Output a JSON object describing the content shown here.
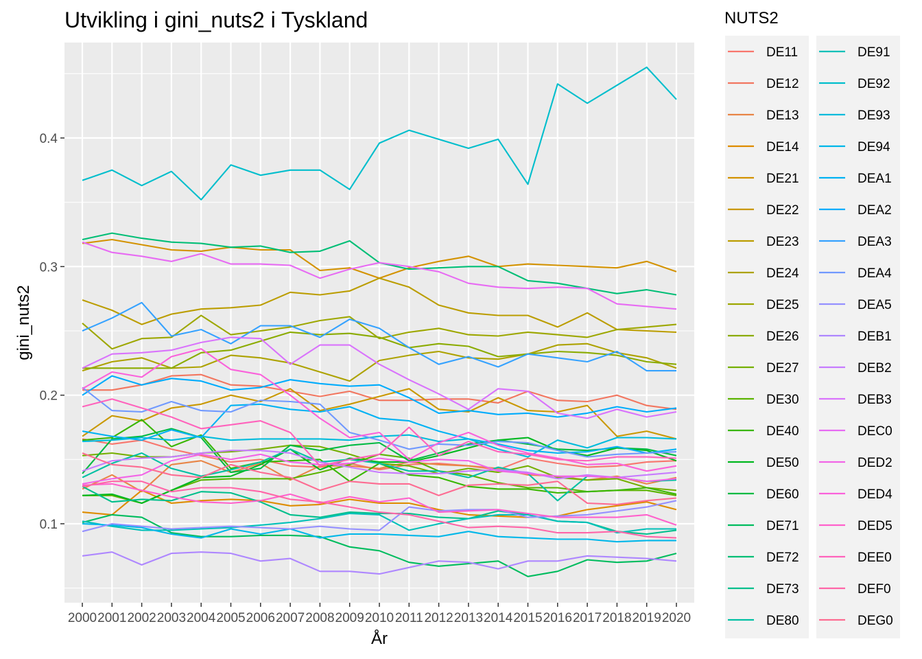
{
  "chart_data": {
    "type": "line",
    "title": "Utvikling i gini_nuts2 i Tyskland",
    "xlabel": "År",
    "ylabel": "gini_nuts2",
    "x": [
      2000,
      2001,
      2002,
      2003,
      2004,
      2005,
      2006,
      2007,
      2008,
      2009,
      2010,
      2011,
      2012,
      2013,
      2014,
      2015,
      2016,
      2017,
      2018,
      2019,
      2020
    ],
    "x_tick_labels": [
      "2000",
      "2001",
      "2002",
      "2003",
      "2004",
      "2005",
      "2006",
      "2007",
      "2008",
      "2009",
      "2010",
      "2011",
      "2012",
      "2013",
      "2014",
      "2015",
      "2016",
      "2017",
      "2018",
      "2019",
      "2020"
    ],
    "y_ticks": [
      0.1,
      0.2,
      0.3,
      0.4
    ],
    "y_tick_labels": [
      "0.1",
      "0.2",
      "0.3",
      "0.4"
    ],
    "ylim": [
      0.04,
      0.47
    ],
    "grid": true,
    "legend_title": "NUTS2",
    "legend_position": "right",
    "series": [
      {
        "name": "DE11",
        "color": "#F8766D",
        "values": [
          0.166,
          0.162,
          0.165,
          0.158,
          0.153,
          0.148,
          0.15,
          0.145,
          0.144,
          0.147,
          0.142,
          0.146,
          0.147,
          0.145,
          0.142,
          0.151,
          0.147,
          0.144,
          0.145,
          0.148,
          0.149
        ]
      },
      {
        "name": "DE12",
        "color": "#F2765F",
        "values": [
          0.204,
          0.204,
          0.208,
          0.215,
          0.216,
          0.208,
          0.207,
          0.203,
          0.199,
          0.203,
          0.196,
          0.196,
          0.197,
          0.197,
          0.194,
          0.203,
          0.196,
          0.195,
          0.2,
          0.192,
          0.189
        ]
      },
      {
        "name": "DE13",
        "color": "#E88546",
        "values": [
          0.127,
          0.138,
          0.125,
          0.146,
          0.149,
          0.14,
          0.147,
          0.134,
          0.145,
          0.145,
          0.143,
          0.148,
          0.146,
          0.145,
          0.143,
          0.138,
          0.137,
          0.134,
          0.137,
          0.131,
          0.136
        ]
      },
      {
        "name": "DE14",
        "color": "#DE8C00",
        "values": [
          0.109,
          0.107,
          0.126,
          0.116,
          0.118,
          0.119,
          0.118,
          0.114,
          0.115,
          0.119,
          0.116,
          0.116,
          0.111,
          0.107,
          0.106,
          0.105,
          0.106,
          0.111,
          0.114,
          0.117,
          0.111
        ]
      },
      {
        "name": "DE21",
        "color": "#D39200",
        "values": [
          0.318,
          0.321,
          0.317,
          0.313,
          0.312,
          0.315,
          0.313,
          0.313,
          0.297,
          0.299,
          0.291,
          0.299,
          0.304,
          0.308,
          0.3,
          0.302,
          0.301,
          0.3,
          0.299,
          0.304,
          0.296
        ]
      },
      {
        "name": "DE22",
        "color": "#C99800",
        "values": [
          0.168,
          0.184,
          0.18,
          0.19,
          0.193,
          0.2,
          0.195,
          0.205,
          0.188,
          0.193,
          0.199,
          0.205,
          0.189,
          0.187,
          0.198,
          0.188,
          0.187,
          0.192,
          0.168,
          0.172,
          0.166
        ]
      },
      {
        "name": "DE23",
        "color": "#BB9D00",
        "values": [
          0.274,
          0.266,
          0.255,
          0.263,
          0.267,
          0.268,
          0.27,
          0.28,
          0.278,
          0.281,
          0.291,
          0.284,
          0.27,
          0.264,
          0.262,
          0.262,
          0.253,
          0.264,
          0.251,
          0.25,
          0.249
        ]
      },
      {
        "name": "DE24",
        "color": "#ADA200",
        "values": [
          0.219,
          0.226,
          0.229,
          0.221,
          0.222,
          0.231,
          0.229,
          0.225,
          0.218,
          0.211,
          0.227,
          0.231,
          0.234,
          0.229,
          0.228,
          0.232,
          0.239,
          0.24,
          0.233,
          0.229,
          0.221
        ]
      },
      {
        "name": "DE25",
        "color": "#9DA700",
        "values": [
          0.256,
          0.236,
          0.244,
          0.245,
          0.262,
          0.247,
          0.25,
          0.253,
          0.258,
          0.261,
          0.244,
          0.249,
          0.252,
          0.247,
          0.246,
          0.249,
          0.247,
          0.245,
          0.251,
          0.253,
          0.255
        ]
      },
      {
        "name": "DE26",
        "color": "#8BAB00",
        "values": [
          0.221,
          0.221,
          0.221,
          0.221,
          0.233,
          0.235,
          0.242,
          0.249,
          0.247,
          0.248,
          0.245,
          0.237,
          0.24,
          0.238,
          0.23,
          0.232,
          0.234,
          0.233,
          0.231,
          0.226,
          0.224
        ]
      },
      {
        "name": "DE27",
        "color": "#75AF00",
        "values": [
          0.153,
          0.155,
          0.152,
          0.152,
          0.155,
          0.156,
          0.158,
          0.161,
          0.16,
          0.154,
          0.147,
          0.145,
          0.139,
          0.143,
          0.14,
          0.145,
          0.136,
          0.134,
          0.135,
          0.128,
          0.126
        ]
      },
      {
        "name": "DE30",
        "color": "#5BB300",
        "values": [
          0.122,
          0.122,
          0.116,
          0.126,
          0.134,
          0.135,
          0.135,
          0.135,
          0.14,
          0.146,
          0.154,
          0.151,
          0.141,
          0.138,
          0.132,
          0.128,
          0.128,
          0.125,
          0.126,
          0.126,
          0.122
        ]
      },
      {
        "name": "DE40",
        "color": "#39B600",
        "values": [
          0.165,
          0.167,
          0.181,
          0.16,
          0.169,
          0.143,
          0.148,
          0.149,
          0.15,
          0.133,
          0.147,
          0.138,
          0.136,
          0.129,
          0.127,
          0.127,
          0.124,
          0.125,
          0.126,
          0.128,
          0.123
        ]
      },
      {
        "name": "DE50",
        "color": "#00B81F",
        "values": [
          0.122,
          0.123,
          0.116,
          0.126,
          0.136,
          0.137,
          0.146,
          0.158,
          0.142,
          0.151,
          0.148,
          0.148,
          0.153,
          0.159,
          0.165,
          0.167,
          0.157,
          0.153,
          0.159,
          0.157,
          0.149
        ]
      },
      {
        "name": "DE60",
        "color": "#00BA42",
        "values": [
          0.139,
          0.166,
          0.168,
          0.174,
          0.167,
          0.14,
          0.143,
          0.161,
          0.157,
          0.161,
          0.163,
          0.149,
          0.155,
          0.162,
          0.165,
          0.162,
          0.158,
          0.157,
          0.159,
          0.158,
          0.153
        ]
      },
      {
        "name": "DE71",
        "color": "#00BC5E",
        "values": [
          0.101,
          0.107,
          0.105,
          0.093,
          0.09,
          0.09,
          0.091,
          0.091,
          0.09,
          0.082,
          0.079,
          0.07,
          0.067,
          0.069,
          0.071,
          0.059,
          0.063,
          0.072,
          0.07,
          0.071,
          0.077
        ]
      },
      {
        "name": "DE72",
        "color": "#00BE76",
        "values": [
          0.321,
          0.326,
          0.322,
          0.319,
          0.318,
          0.315,
          0.316,
          0.311,
          0.312,
          0.32,
          0.303,
          0.298,
          0.299,
          0.3,
          0.3,
          0.289,
          0.287,
          0.283,
          0.279,
          0.282,
          0.278
        ]
      },
      {
        "name": "DE73",
        "color": "#00BF8C",
        "values": [
          0.129,
          0.117,
          0.119,
          0.118,
          0.125,
          0.124,
          0.117,
          0.107,
          0.105,
          0.109,
          0.108,
          0.108,
          0.105,
          0.104,
          0.11,
          0.107,
          0.102,
          0.101,
          0.094,
          0.092,
          0.095
        ]
      },
      {
        "name": "DE80",
        "color": "#00C0A3",
        "values": [
          0.136,
          0.147,
          0.155,
          0.143,
          0.137,
          0.142,
          0.148,
          0.158,
          0.148,
          0.15,
          0.147,
          0.141,
          0.141,
          0.136,
          0.144,
          0.139,
          0.118,
          0.137,
          0.136,
          0.133,
          0.134
        ]
      },
      {
        "name": "DE91",
        "color": "#00C0B8",
        "values": [
          0.102,
          0.098,
          0.095,
          0.095,
          0.096,
          0.097,
          0.099,
          0.101,
          0.104,
          0.108,
          0.107,
          0.095,
          0.1,
          0.104,
          0.107,
          0.107,
          0.102,
          0.101,
          0.093,
          0.096,
          0.096
        ]
      },
      {
        "name": "DE92",
        "color": "#00BECC",
        "values": [
          0.367,
          0.375,
          0.363,
          0.374,
          0.352,
          0.379,
          0.371,
          0.375,
          0.375,
          0.36,
          0.396,
          0.406,
          0.399,
          0.392,
          0.399,
          0.364,
          0.442,
          0.427,
          0.441,
          0.455,
          0.43
        ]
      },
      {
        "name": "DE93",
        "color": "#00BBDC",
        "values": [
          0.164,
          0.165,
          0.167,
          0.165,
          0.168,
          0.165,
          0.166,
          0.166,
          0.166,
          0.165,
          0.168,
          0.169,
          0.164,
          0.166,
          0.158,
          0.152,
          0.165,
          0.159,
          0.167,
          0.167,
          0.166
        ]
      },
      {
        "name": "DE94",
        "color": "#00B7E9",
        "values": [
          0.1,
          0.099,
          0.097,
          0.092,
          0.089,
          0.096,
          0.092,
          0.096,
          0.089,
          0.092,
          0.092,
          0.091,
          0.09,
          0.094,
          0.09,
          0.089,
          0.088,
          0.088,
          0.086,
          0.087,
          0.087
        ]
      },
      {
        "name": "DEA1",
        "color": "#00B2F3",
        "values": [
          0.172,
          0.168,
          0.165,
          0.173,
          0.167,
          0.192,
          0.193,
          0.189,
          0.187,
          0.191,
          0.182,
          0.18,
          0.172,
          0.166,
          0.162,
          0.157,
          0.155,
          0.156,
          0.16,
          0.155,
          0.158
        ]
      },
      {
        "name": "DEA2",
        "color": "#00ACFC",
        "values": [
          0.2,
          0.215,
          0.208,
          0.213,
          0.211,
          0.204,
          0.206,
          0.212,
          0.209,
          0.207,
          0.208,
          0.198,
          0.186,
          0.188,
          0.185,
          0.186,
          0.183,
          0.186,
          0.191,
          0.187,
          0.19
        ]
      },
      {
        "name": "DEA3",
        "color": "#35A2FF",
        "values": [
          0.25,
          0.26,
          0.272,
          0.246,
          0.251,
          0.24,
          0.254,
          0.254,
          0.245,
          0.259,
          0.252,
          0.237,
          0.224,
          0.23,
          0.222,
          0.232,
          0.229,
          0.226,
          0.234,
          0.219,
          0.219
        ]
      },
      {
        "name": "DEA4",
        "color": "#7099FF",
        "values": [
          0.206,
          0.188,
          0.187,
          0.195,
          0.188,
          0.187,
          0.196,
          0.195,
          0.193,
          0.171,
          0.165,
          0.158,
          0.162,
          0.161,
          0.164,
          0.163,
          0.157,
          0.152,
          0.154,
          0.155,
          0.156
        ]
      },
      {
        "name": "DEA5",
        "color": "#9590FF",
        "values": [
          0.094,
          0.1,
          0.098,
          0.096,
          0.097,
          0.098,
          0.097,
          0.096,
          0.098,
          0.096,
          0.095,
          0.113,
          0.11,
          0.111,
          0.111,
          0.105,
          0.106,
          0.107,
          0.11,
          0.113,
          0.118
        ]
      },
      {
        "name": "DEB1",
        "color": "#AE87FF",
        "values": [
          0.075,
          0.078,
          0.068,
          0.077,
          0.078,
          0.077,
          0.071,
          0.073,
          0.063,
          0.063,
          0.061,
          0.066,
          0.071,
          0.07,
          0.065,
          0.071,
          0.071,
          0.075,
          0.074,
          0.073,
          0.071
        ]
      },
      {
        "name": "DEB2",
        "color": "#C77CFF",
        "values": [
          0.141,
          0.149,
          0.151,
          0.152,
          0.155,
          0.157,
          0.157,
          0.155,
          0.148,
          0.144,
          0.14,
          0.139,
          0.139,
          0.141,
          0.142,
          0.14,
          0.135,
          0.138,
          0.136,
          0.138,
          0.14
        ]
      },
      {
        "name": "DEB3",
        "color": "#D973FC",
        "values": [
          0.221,
          0.232,
          0.233,
          0.235,
          0.241,
          0.245,
          0.244,
          0.224,
          0.239,
          0.239,
          0.224,
          0.212,
          0.201,
          0.189,
          0.205,
          0.203,
          0.186,
          0.182,
          0.189,
          0.183,
          0.187
        ]
      },
      {
        "name": "DEC0",
        "color": "#E76BF3",
        "values": [
          0.319,
          0.311,
          0.308,
          0.304,
          0.31,
          0.302,
          0.302,
          0.301,
          0.291,
          0.298,
          0.303,
          0.3,
          0.296,
          0.287,
          0.284,
          0.283,
          0.284,
          0.283,
          0.271,
          0.269,
          0.267
        ]
      },
      {
        "name": "DED2",
        "color": "#F265E7",
        "values": [
          0.131,
          0.135,
          0.138,
          0.149,
          0.154,
          0.15,
          0.154,
          0.148,
          0.146,
          0.147,
          0.151,
          0.148,
          0.15,
          0.149,
          0.141,
          0.139,
          0.137,
          0.137,
          0.136,
          0.133,
          0.135
        ]
      },
      {
        "name": "DED4",
        "color": "#FA62DB",
        "values": [
          0.205,
          0.218,
          0.214,
          0.23,
          0.236,
          0.22,
          0.216,
          0.2,
          0.182,
          0.167,
          0.171,
          0.15,
          0.163,
          0.171,
          0.161,
          0.155,
          0.151,
          0.146,
          0.147,
          0.141,
          0.145
        ]
      },
      {
        "name": "DED5",
        "color": "#FF61CC",
        "values": [
          0.13,
          0.131,
          0.126,
          0.121,
          0.117,
          0.116,
          0.118,
          0.123,
          0.116,
          0.121,
          0.117,
          0.12,
          0.109,
          0.11,
          0.111,
          0.108,
          0.105,
          0.105,
          0.105,
          0.107,
          0.099
        ]
      },
      {
        "name": "DEE0",
        "color": "#FF63BC",
        "values": [
          0.191,
          0.197,
          0.19,
          0.183,
          0.174,
          0.177,
          0.18,
          0.171,
          0.145,
          0.15,
          0.154,
          0.175,
          0.153,
          0.164,
          0.156,
          0.154,
          0.15,
          0.149,
          0.152,
          0.152,
          0.151
        ]
      },
      {
        "name": "DEF0",
        "color": "#FF66A8",
        "values": [
          0.129,
          0.133,
          0.133,
          0.125,
          0.128,
          0.128,
          0.125,
          0.119,
          0.117,
          0.113,
          0.109,
          0.107,
          0.102,
          0.097,
          0.098,
          0.097,
          0.093,
          0.093,
          0.094,
          0.09,
          0.089
        ]
      },
      {
        "name": "DEG0",
        "color": "#FD6C92",
        "values": [
          0.155,
          0.146,
          0.144,
          0.138,
          0.136,
          0.146,
          0.14,
          0.136,
          0.126,
          0.133,
          0.131,
          0.131,
          0.122,
          0.13,
          0.131,
          0.13,
          0.133,
          0.116,
          0.115,
          0.118,
          0.12
        ]
      }
    ]
  }
}
